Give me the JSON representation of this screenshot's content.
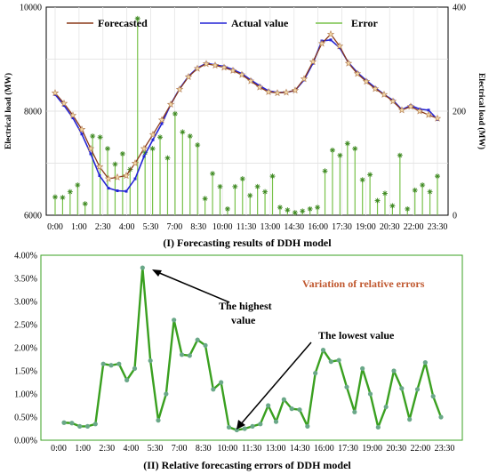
{
  "chart_data": [
    {
      "type": "line",
      "caption": "(I) Forecasting results of DDH model",
      "ylabel_left": "Electrical load (MW)",
      "ylabel_right": "Electrical load (MW)",
      "ylim_left": [
        6000,
        10000
      ],
      "yticks_left": [
        "6000",
        "8000",
        "10000"
      ],
      "ylim_right": [
        0,
        400
      ],
      "yticks_right": [
        "0",
        "200",
        "400"
      ],
      "x_tick_labels": [
        "0:00",
        "1:00",
        "2:30",
        "4:00",
        "5:30",
        "7:00",
        "8:30",
        "10:00",
        "11:30",
        "13:00",
        "14:30",
        "16:00",
        "17:30",
        "19:00",
        "20:30",
        "22:00",
        "23:30"
      ],
      "legend_position": "top",
      "grid": true,
      "series": [
        {
          "name": "Forecasted",
          "color": "#8b3a1a",
          "axis": "left",
          "values": [
            8350,
            8150,
            7920,
            7650,
            7280,
            6930,
            6700,
            6730,
            6760,
            7000,
            7280,
            7550,
            7830,
            8130,
            8420,
            8660,
            8820,
            8910,
            8880,
            8840,
            8780,
            8700,
            8580,
            8460,
            8370,
            8350,
            8360,
            8400,
            8620,
            8950,
            9300,
            9480,
            9250,
            8920,
            8720,
            8570,
            8430,
            8320,
            8190,
            8020,
            8090,
            8000,
            7930,
            7860
          ]
        },
        {
          "name": "Actual value",
          "color": "#2424d6",
          "axis": "left",
          "values": [
            8320,
            8110,
            7870,
            7560,
            7180,
            6760,
            6520,
            6470,
            6460,
            6700,
            7130,
            7450,
            7760,
            8130,
            8430,
            8670,
            8830,
            8920,
            8890,
            8860,
            8800,
            8720,
            8600,
            8490,
            8390,
            8360,
            8360,
            8400,
            8600,
            8920,
            9350,
            9370,
            9220,
            8930,
            8740,
            8590,
            8450,
            8320,
            8210,
            8030,
            8110,
            8040,
            8020,
            7840
          ]
        },
        {
          "name": "Error",
          "color": "#78c24a",
          "axis": "right",
          "values": [
            35,
            34,
            45,
            58,
            22,
            152,
            150,
            128,
            98,
            118,
            88,
            378,
            120,
            128,
            150,
            110,
            195,
            160,
            152,
            135,
            32,
            80,
            55,
            12,
            55,
            70,
            38,
            55,
            45,
            75,
            15,
            10,
            5,
            8,
            12,
            15,
            85,
            125,
            115,
            138,
            128,
            68,
            78,
            28,
            42,
            18,
            115,
            12,
            48,
            58,
            45,
            75
          ]
        }
      ]
    },
    {
      "type": "line",
      "caption": "(II) Relative forecasting errors of DDH model",
      "ylim": [
        0,
        4.0
      ],
      "yticks": [
        "0.00%",
        "0.50%",
        "1.00%",
        "1.50%",
        "2.00%",
        "2.50%",
        "3.00%",
        "3.50%",
        "4.00%"
      ],
      "x_tick_labels": [
        "0:00",
        "1:00",
        "2:30",
        "4:00",
        "5:30",
        "7:00",
        "8:30",
        "10:00",
        "11:30",
        "13:00",
        "14:30",
        "16:00",
        "17:30",
        "19:00",
        "20:30",
        "22:00",
        "23:30"
      ],
      "inset_title": "Variation of relative errors",
      "annotations": [
        {
          "text_lines": [
            "The highest",
            "value"
          ]
        },
        {
          "text_lines": [
            "The lowest value"
          ]
        }
      ],
      "series": [
        {
          "name": "",
          "color": "#3aa020",
          "values": [
            0.38,
            0.37,
            0.3,
            0.3,
            0.35,
            1.65,
            1.62,
            1.65,
            1.3,
            1.55,
            3.73,
            1.72,
            0.43,
            1.0,
            2.6,
            1.85,
            1.83,
            2.17,
            2.05,
            1.1,
            1.25,
            0.28,
            0.22,
            0.25,
            0.3,
            0.35,
            0.75,
            0.4,
            0.88,
            0.68,
            0.66,
            0.3,
            1.45,
            1.95,
            1.7,
            1.73,
            1.15,
            0.61,
            1.55,
            1.0,
            0.28,
            0.72,
            1.5,
            1.12,
            0.45,
            1.1,
            1.68,
            0.95,
            0.5
          ]
        }
      ]
    }
  ]
}
